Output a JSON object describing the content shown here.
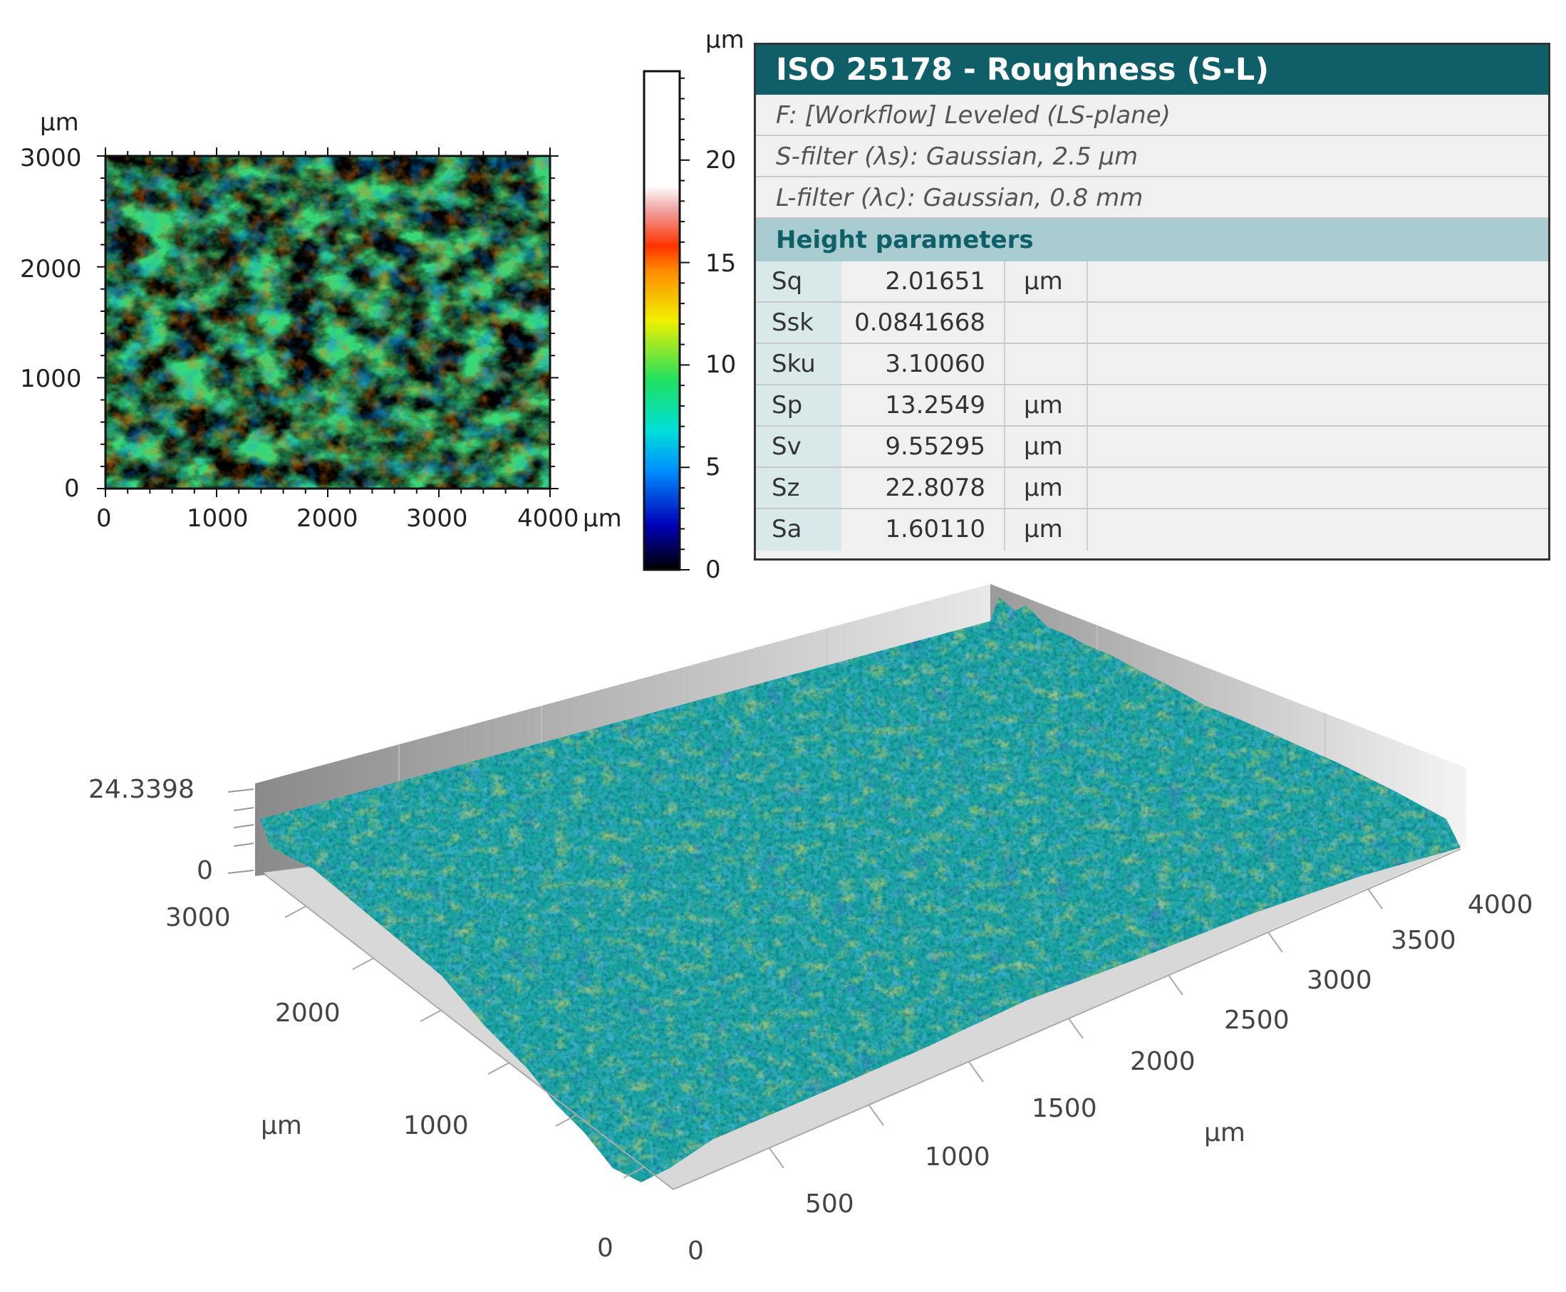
{
  "map2d": {
    "unit_y": "µm",
    "unit_x": "µm",
    "x_ticks": [
      "0",
      "1000",
      "2000",
      "3000",
      "4000"
    ],
    "y_ticks": [
      "0",
      "1000",
      "2000",
      "3000"
    ]
  },
  "colorbar": {
    "unit": "µm",
    "ticks": [
      "0",
      "5",
      "10",
      "15",
      "20"
    ]
  },
  "table": {
    "title": "ISO 25178 - Roughness (S-L)",
    "info": [
      "F: [Workflow] Leveled (LS-plane)",
      "S-filter (λs): Gaussian, 2.5 µm",
      "L-filter (λc): Gaussian, 0.8 mm"
    ],
    "section": "Height parameters",
    "rows": [
      {
        "name": "Sq",
        "value": "2.01651",
        "unit": "µm"
      },
      {
        "name": "Ssk",
        "value": "0.0841668",
        "unit": ""
      },
      {
        "name": "Sku",
        "value": "3.10060",
        "unit": ""
      },
      {
        "name": "Sp",
        "value": "13.2549",
        "unit": "µm"
      },
      {
        "name": "Sv",
        "value": "9.55295",
        "unit": "µm"
      },
      {
        "name": "Sz",
        "value": "22.8078",
        "unit": "µm"
      },
      {
        "name": "Sa",
        "value": "1.60110",
        "unit": "µm"
      }
    ]
  },
  "surface3d": {
    "z_ticks": [
      "24.3398",
      "0"
    ],
    "y_ticks": [
      "3000",
      "2000",
      "1000",
      "0"
    ],
    "y_unit": "µm",
    "x_ticks": [
      "0",
      "500",
      "1000",
      "1500",
      "2000",
      "2500",
      "3000",
      "3500",
      "4000"
    ],
    "x_unit": "µm"
  },
  "chart_data": [
    {
      "type": "heatmap",
      "x_range": [
        0,
        4000
      ],
      "y_range": [
        0,
        3000
      ],
      "x_unit": "µm",
      "y_unit": "µm",
      "color_range": [
        0,
        24.3398
      ],
      "colormap": [
        "#000000",
        "#0000c8",
        "#00c8ff",
        "#00e070",
        "#f0f000",
        "#ff3a00",
        "#ffffff"
      ]
    },
    {
      "type": "surface",
      "x_range": [
        0,
        4000
      ],
      "y_range": [
        0,
        3000
      ],
      "z_range": [
        0,
        24.3398
      ],
      "unit": "µm",
      "colors": [
        "#1a2a9a",
        "#1fa0c8",
        "#1fb06a",
        "#c8b020",
        "#c84a10"
      ]
    }
  ]
}
